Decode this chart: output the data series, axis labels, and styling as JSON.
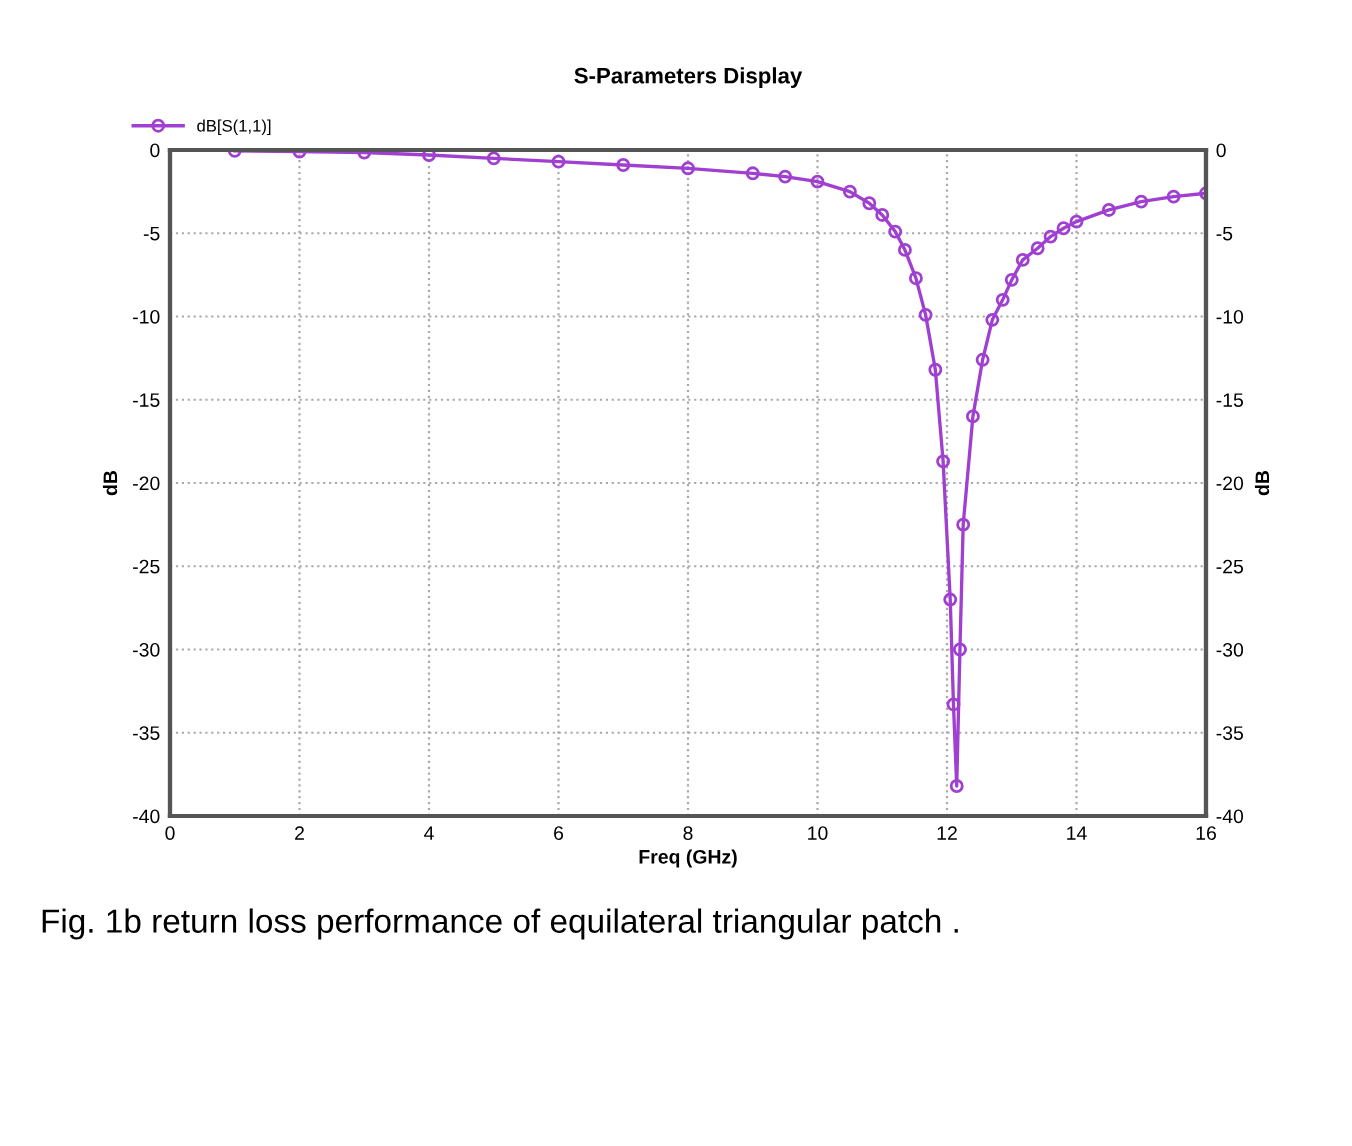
{
  "chart_data": {
    "type": "line",
    "title": "S-Parameters Display",
    "xlabel": "Freq (GHz)",
    "ylabel": "dB",
    "y2label": "dB",
    "annotations": [
      "Fig. 1b return loss performance of equilateral triangular patch ."
    ],
    "x": [
      1,
      2,
      3,
      4,
      5,
      6,
      7,
      8,
      9,
      9.5,
      10,
      10.5,
      10.8,
      11,
      11.2,
      11.35,
      11.52,
      11.67,
      11.82,
      11.94,
      12.05,
      12.1,
      12.15,
      12.2,
      12.25,
      12.4,
      12.55,
      12.7,
      12.86,
      13,
      13.17,
      13.4,
      13.6,
      13.8,
      14,
      14.5,
      15,
      15.5,
      16
    ],
    "series": [
      {
        "name": "dB[S(1,1)]",
        "color": "#a040d0",
        "values": [
          -0.05,
          -0.1,
          -0.15,
          -0.3,
          -0.5,
          -0.7,
          -0.9,
          -1.1,
          -1.4,
          -1.6,
          -1.9,
          -2.5,
          -3.2,
          -3.9,
          -4.9,
          -6.0,
          -7.7,
          -9.9,
          -13.2,
          -18.7,
          -27,
          -33.3,
          -38.2,
          -30,
          -22.5,
          -16,
          -12.6,
          -10.2,
          -9.0,
          -7.8,
          -6.6,
          -5.9,
          -5.2,
          -4.7,
          -4.3,
          -3.6,
          -3.1,
          -2.8,
          -2.6
        ]
      }
    ],
    "xlim": [
      0,
      16
    ],
    "xticks": [
      0,
      2,
      4,
      6,
      8,
      10,
      12,
      14,
      16
    ],
    "ylim": [
      -40,
      0
    ],
    "yticks": [
      -40,
      -35,
      -30,
      -25,
      -20,
      -15,
      -10,
      -5,
      0
    ],
    "y2lim": [
      -40,
      0
    ],
    "y2ticks": [
      -40,
      -35,
      -30,
      -25,
      -20,
      -15,
      -10,
      -5,
      0
    ],
    "grid": true,
    "legend": "top left",
    "marker": "circle",
    "line_style": "solid"
  }
}
